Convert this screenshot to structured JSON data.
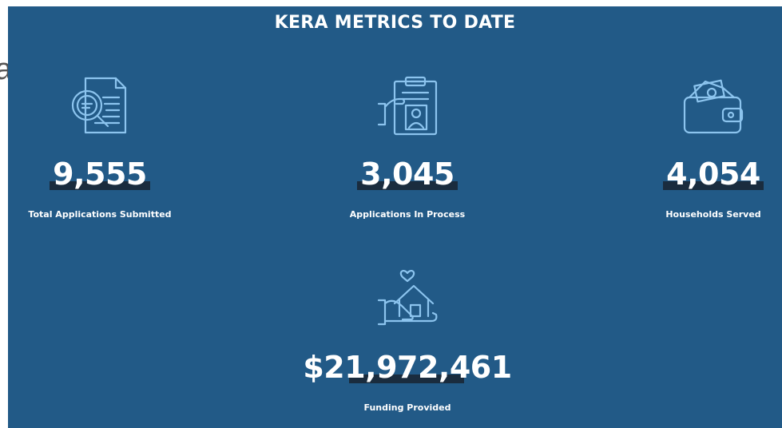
{
  "page_fragment": "a",
  "header": {
    "title": "KERA METRICS TO DATE"
  },
  "metrics": [
    {
      "value": "9,555",
      "label": "Total Applications Submitted"
    },
    {
      "value": "3,045",
      "label": "Applications In Process"
    },
    {
      "value": "4,054",
      "label": "Households Served"
    },
    {
      "value": "$21,972,461",
      "label": "Funding Provided"
    }
  ]
}
